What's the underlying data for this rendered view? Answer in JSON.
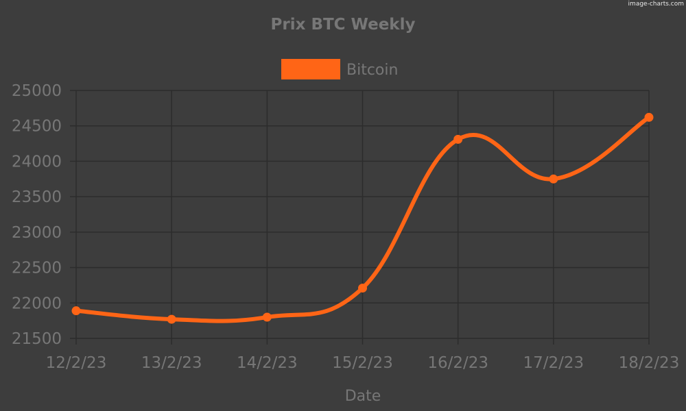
{
  "watermark": "image-charts.com",
  "colors": {
    "background": "#3d3d3d",
    "grid": "#2c2c2c",
    "text": "#777777",
    "series": "#ff6516",
    "watermark": "#e8e8e8"
  },
  "chart_data": {
    "type": "line",
    "title": "Prix BTC Weekly",
    "xlabel": "Date",
    "ylabel": "",
    "categories": [
      "12/2/23",
      "13/2/23",
      "14/2/23",
      "15/2/23",
      "16/2/23",
      "17/2/23",
      "18/2/23"
    ],
    "series": [
      {
        "name": "Bitcoin",
        "values": [
          21890,
          21770,
          21800,
          22210,
          24310,
          23750,
          24620
        ]
      }
    ],
    "ylim": [
      21500,
      25000
    ],
    "yticks": [
      "25000",
      "24500",
      "24000",
      "23500",
      "23000",
      "22500",
      "22000",
      "21500"
    ],
    "grid": true,
    "legend": "top",
    "smooth": true
  }
}
